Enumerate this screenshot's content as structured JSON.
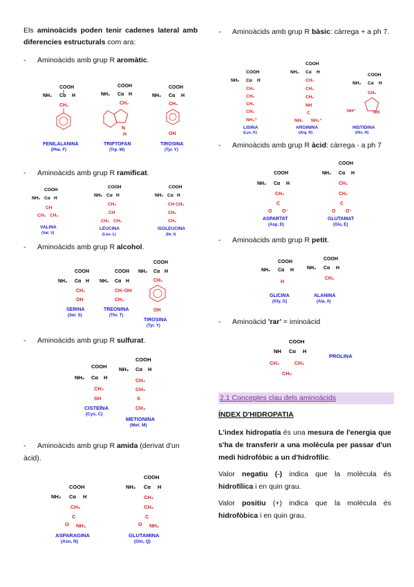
{
  "intro": {
    "pre": "Els ",
    "bold": "aminoàcids poden tenir cadenes lateral amb diferencies estructurals",
    "post": " com ara:"
  },
  "dash": "-",
  "bullets_left": [
    {
      "pre": "Aminoàcids amb grup R ",
      "bold": "aromàtic",
      "post": "."
    },
    {
      "pre": "Aminoàcids amb grup R ",
      "bold": "ramificat",
      "post": "."
    },
    {
      "pre": "Aminoàcids amb grup R ",
      "bold": "alcohol",
      "post": "."
    },
    {
      "pre": "Aminoàcids amb grup R ",
      "bold": "sulfurat",
      "post": "."
    },
    {
      "pre": "Aminoàcids amb grup R ",
      "bold": "amida",
      "post": " (derivat d'un àcid)."
    }
  ],
  "bullets_right": [
    {
      "pre": "Aminoàcids amb grup R ",
      "bold": "bàsic",
      "post": ": càrrega + a ph 7."
    },
    {
      "pre": "Aminoàcids amb grup R ",
      "bold": "àcid",
      "post": ": càrrega - a ph 7"
    },
    {
      "pre": "Aminoàcids amb grup R ",
      "bold": "petit",
      "post": "."
    },
    {
      "pre": "Aminoàcid ",
      "bold": "'rar'",
      "post": " = iminoàcid"
    }
  ],
  "chem": {
    "cooh": "COOH",
    "nh2": "NH₂",
    "ca": "Cα",
    "h": "H",
    "nh": "NH",
    "ch": "CH",
    "ch2": "CH₂",
    "ch3": "CH₃",
    "oh": "OH",
    "sh": "SH",
    "s": "S",
    "c": "C",
    "o": "O",
    "o_minus": "O⁻",
    "nh3": "NH₃⁺",
    "nh2r": "NH₂",
    "nhplus": "NH⁺",
    "n": "N",
    "choh": "CH–OH"
  },
  "aminoacids": {
    "phe": {
      "name": "FENILALANINA",
      "code": "(Phe. F)"
    },
    "trp": {
      "name": "TRIPTOFAN",
      "code": "(Trp. W)"
    },
    "tyr": {
      "name": "TIROSINA",
      "code": "(Tyr. Y)"
    },
    "val": {
      "name": "VALINA",
      "code": "(Val. V)"
    },
    "leu": {
      "name": "LEUCINA",
      "code": "(Leu. L)"
    },
    "ile": {
      "name": "ISOLEUCINA",
      "code": "(Ile. I)"
    },
    "ser": {
      "name": "SERINA",
      "code": "(Ser. S)"
    },
    "thr": {
      "name": "TREONINA",
      "code": "(Thr. T)"
    },
    "tyr2": {
      "name": "TIROSINA",
      "code": "(Tyr. Y)"
    },
    "cys": {
      "name": "CISTEÏNA",
      "code": "(Cys, C)"
    },
    "met": {
      "name": "METIONINA",
      "code": "(Met. M)"
    },
    "asn": {
      "name": "ASPARAGINA",
      "code": "(Asn, N)"
    },
    "gln": {
      "name": "GLUTAMINA",
      "code": "(Gln, Q)"
    },
    "lys": {
      "name": "LISINA",
      "code": "(Lys, K)"
    },
    "arg": {
      "name": "ARGININA",
      "code": "(Arg, R)"
    },
    "his": {
      "name": "HISTIDINA",
      "code": "(His, H)"
    },
    "asp": {
      "name": "ASPARTAT",
      "code": "(Asp, D)"
    },
    "glu": {
      "name": "GLUTAMAT",
      "code": "(Glu, E)"
    },
    "gly": {
      "name": "GLICINA",
      "code": "(Gly, G)"
    },
    "ala": {
      "name": "ALANINA",
      "code": "(Ala, A)"
    },
    "pro": {
      "name": "PROLINA",
      "code": ""
    }
  },
  "section_title": "2.1 Conceptes clau dels aminoàcids",
  "index_title": "ÍNDEX D'HIDROPATIA",
  "index_def": {
    "b1": "L'index hidropatía",
    "t1": " és una ",
    "b2": "mesura de l'energia que s'ha de transferir a una molècula per passar d'un medi hidrofòbic a un d'hidrofílic",
    "t2": "."
  },
  "neg": {
    "t1": "Valor ",
    "b1": "negatiu (-)",
    "t2": " indica que la molècula és ",
    "b2": "hidrofílica",
    "t3": " i en quin grau."
  },
  "pos": {
    "t1": "Valor ",
    "b1": "positiu",
    "t2": " (+) indica que la molècula és ",
    "b2": "hidrofòbica",
    "t3": " i en quin grau."
  },
  "colors": {
    "red": "#e02020",
    "blue": "#1a1ad0",
    "purple": "#7030a0",
    "sect_bg": "#e6d6ef"
  }
}
